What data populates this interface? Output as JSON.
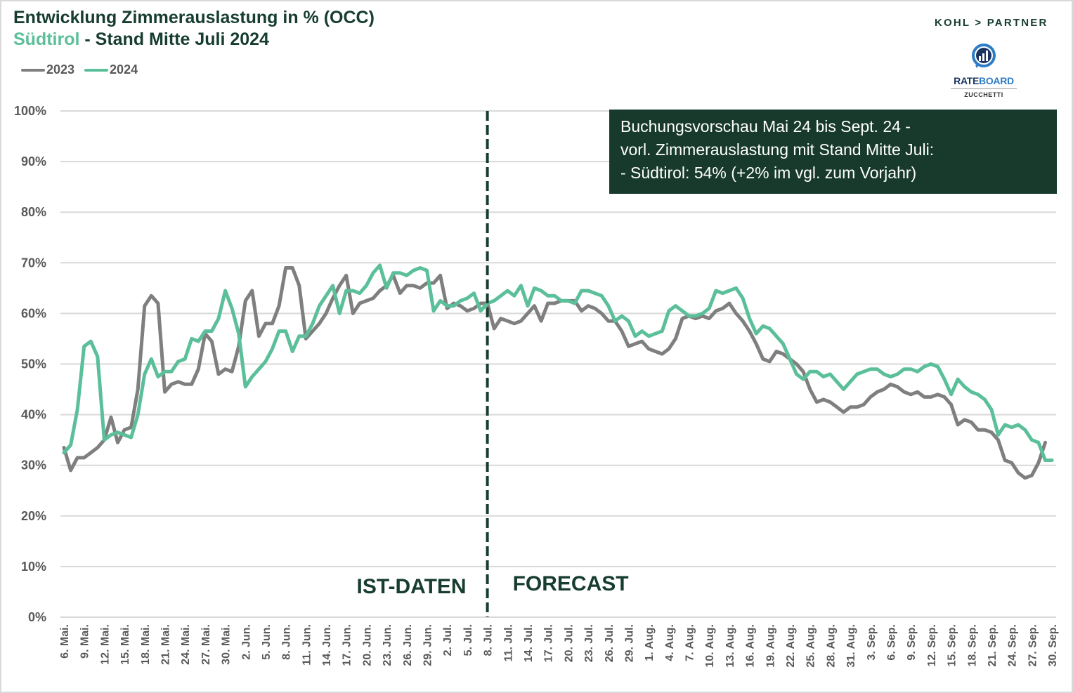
{
  "header": {
    "title_line1": "Entwicklung Zimmerauslastung in % (OCC)",
    "title_region": "Südtirol",
    "title_line2_rest": " - Stand Mitte Juli 2024"
  },
  "branding": {
    "partner": "KOHL > PARTNER",
    "rateboard_part1": "RATE",
    "rateboard_part2": "BOARD",
    "rateboard_sub": "ZUCCHETTI"
  },
  "infobox": {
    "line1": "Buchungsvorschau Mai 24 bis Sept. 24 -",
    "line2": "vorl. Zimmerauslastung mit Stand Mitte Juli:",
    "line3": "- Südtirol:  54% (+2% im vgl. zum Vorjahr)"
  },
  "colors": {
    "series_2023": "#7f7f7f",
    "series_2024": "#5bbf9a",
    "dark_green": "#173d2f",
    "grid": "#d9d9d9",
    "axis_text": "#595959"
  },
  "chart_data": {
    "type": "line",
    "title": "Entwicklung Zimmerauslastung in % (OCC) Südtirol - Stand Mitte Juli 2024",
    "xlabel": "",
    "ylabel": "",
    "ylim": [
      0,
      100
    ],
    "y_ticks": [
      "0%",
      "10%",
      "20%",
      "30%",
      "40%",
      "50%",
      "60%",
      "70%",
      "80%",
      "90%",
      "100%"
    ],
    "grid": true,
    "legend_position": "top-left",
    "x_start": "6. Mai",
    "x_end": "30. Sep.",
    "x_tick_labels": [
      "6. Mai.",
      "9. Mai.",
      "12. Mai.",
      "15. Mai.",
      "18. Mai.",
      "21. Mai.",
      "24. Mai.",
      "27. Mai.",
      "30. Mai.",
      "2. Jun.",
      "5. Jun.",
      "8. Jun.",
      "11. Jun.",
      "14. Jun.",
      "17. Jun.",
      "20. Jun.",
      "23. Jun.",
      "26. Jun.",
      "29. Jun.",
      "2. Jul.",
      "5. Jul.",
      "8. Jul.",
      "11. Jul.",
      "14. Jul.",
      "17. Jul.",
      "20. Jul.",
      "23. Jul.",
      "26. Jul.",
      "29. Jul.",
      "1. Aug.",
      "4. Aug.",
      "7. Aug.",
      "10. Aug.",
      "13. Aug.",
      "16. Aug.",
      "19. Aug.",
      "22. Aug.",
      "25. Aug.",
      "28. Aug.",
      "31. Aug.",
      "3. Sep.",
      "6. Sep.",
      "9. Sep.",
      "12. Sep.",
      "15. Sep.",
      "18. Sep.",
      "21. Sep.",
      "24. Sep.",
      "27. Sep.",
      "30. Sep."
    ],
    "divider_label": "8. Jul.",
    "annotations": [
      "IST-DATEN",
      "FORECAST"
    ],
    "series": [
      {
        "name": "2023",
        "values": [
          33.5,
          29,
          31.5,
          31.5,
          32.5,
          33.5,
          35,
          39.5,
          34.5,
          37,
          37.5,
          45,
          61.5,
          63.5,
          62,
          44.5,
          46,
          46.5,
          46,
          46,
          49,
          56,
          54.5,
          48,
          49,
          48.5,
          53.5,
          62.5,
          64.5,
          55.5,
          58,
          58,
          61.5,
          69,
          69,
          65.5,
          55,
          56.5,
          58,
          60,
          63,
          65.5,
          67.5,
          60,
          62,
          62.5,
          63,
          64.5,
          65.5,
          67.5,
          64,
          65.5,
          65.5,
          65,
          66,
          66,
          67.5,
          61,
          62,
          61.5,
          60.5,
          61,
          62,
          62,
          57,
          59,
          58.5,
          58,
          58.5,
          60,
          61.5,
          58.5,
          62,
          62,
          62.5,
          62.5,
          62.5,
          60.5,
          61.5,
          61,
          60,
          58.5,
          58.5,
          56.5,
          53.5,
          54,
          54.5,
          53,
          52.5,
          52,
          53,
          55,
          59,
          59.5,
          59,
          59.5,
          59,
          60.5,
          61,
          62,
          60,
          58.5,
          56.5,
          54,
          51,
          50.5,
          52.5,
          52,
          51,
          50,
          48.5,
          45,
          42.5,
          43,
          42.5,
          41.5,
          40.5,
          41.5,
          41.5,
          42,
          43.5,
          44.5,
          45,
          46,
          45.5,
          44.5,
          44,
          44.5,
          43.5,
          43.5,
          44,
          43.5,
          42,
          38,
          39,
          38.5,
          37,
          37,
          36.5,
          35,
          31,
          30.5,
          28.5,
          27.5,
          28,
          30.5,
          34.5
        ]
      },
      {
        "name": "2024",
        "values": [
          32.5,
          34,
          41,
          53.5,
          54.5,
          51.5,
          35,
          36,
          36.5,
          36,
          35.5,
          40,
          48,
          51,
          47.5,
          48.5,
          48.5,
          50.5,
          51,
          55,
          54.5,
          56.5,
          56.5,
          59,
          64.5,
          61,
          56,
          45.5,
          47.5,
          49,
          50.5,
          53,
          56.5,
          56.5,
          52.5,
          55.5,
          55.5,
          58,
          61.5,
          63.5,
          65.5,
          60,
          64.5,
          64.5,
          64,
          65.5,
          68,
          69.5,
          65,
          68,
          68,
          67.5,
          68.5,
          69,
          68.5,
          60.5,
          62.5,
          61.5,
          61.5,
          62.5,
          63,
          64,
          60.5,
          62,
          62.5,
          63.5,
          64.5,
          63.5,
          65.5,
          61.5,
          65,
          64.5,
          63.5,
          63.5,
          62.5,
          62.5,
          62,
          64.5,
          64.5,
          64,
          63.5,
          61.5,
          58.5,
          59.5,
          58.5,
          55.5,
          56.5,
          55.5,
          56,
          56.5,
          60.5,
          61.5,
          60.5,
          59.5,
          59.5,
          60,
          61,
          64.5,
          64,
          64.5,
          65,
          63,
          59,
          56,
          57.5,
          57,
          55.5,
          54,
          51,
          48,
          47,
          48.5,
          48.5,
          47.5,
          48,
          46.5,
          45,
          46.5,
          48,
          48.5,
          49,
          49,
          48,
          47.5,
          48,
          49,
          49,
          48.5,
          49.5,
          50,
          49.5,
          47,
          44,
          47,
          45.5,
          44.5,
          44,
          43,
          41,
          36,
          38,
          37.5,
          38,
          37,
          35,
          34.5,
          31,
          31
        ]
      }
    ]
  }
}
